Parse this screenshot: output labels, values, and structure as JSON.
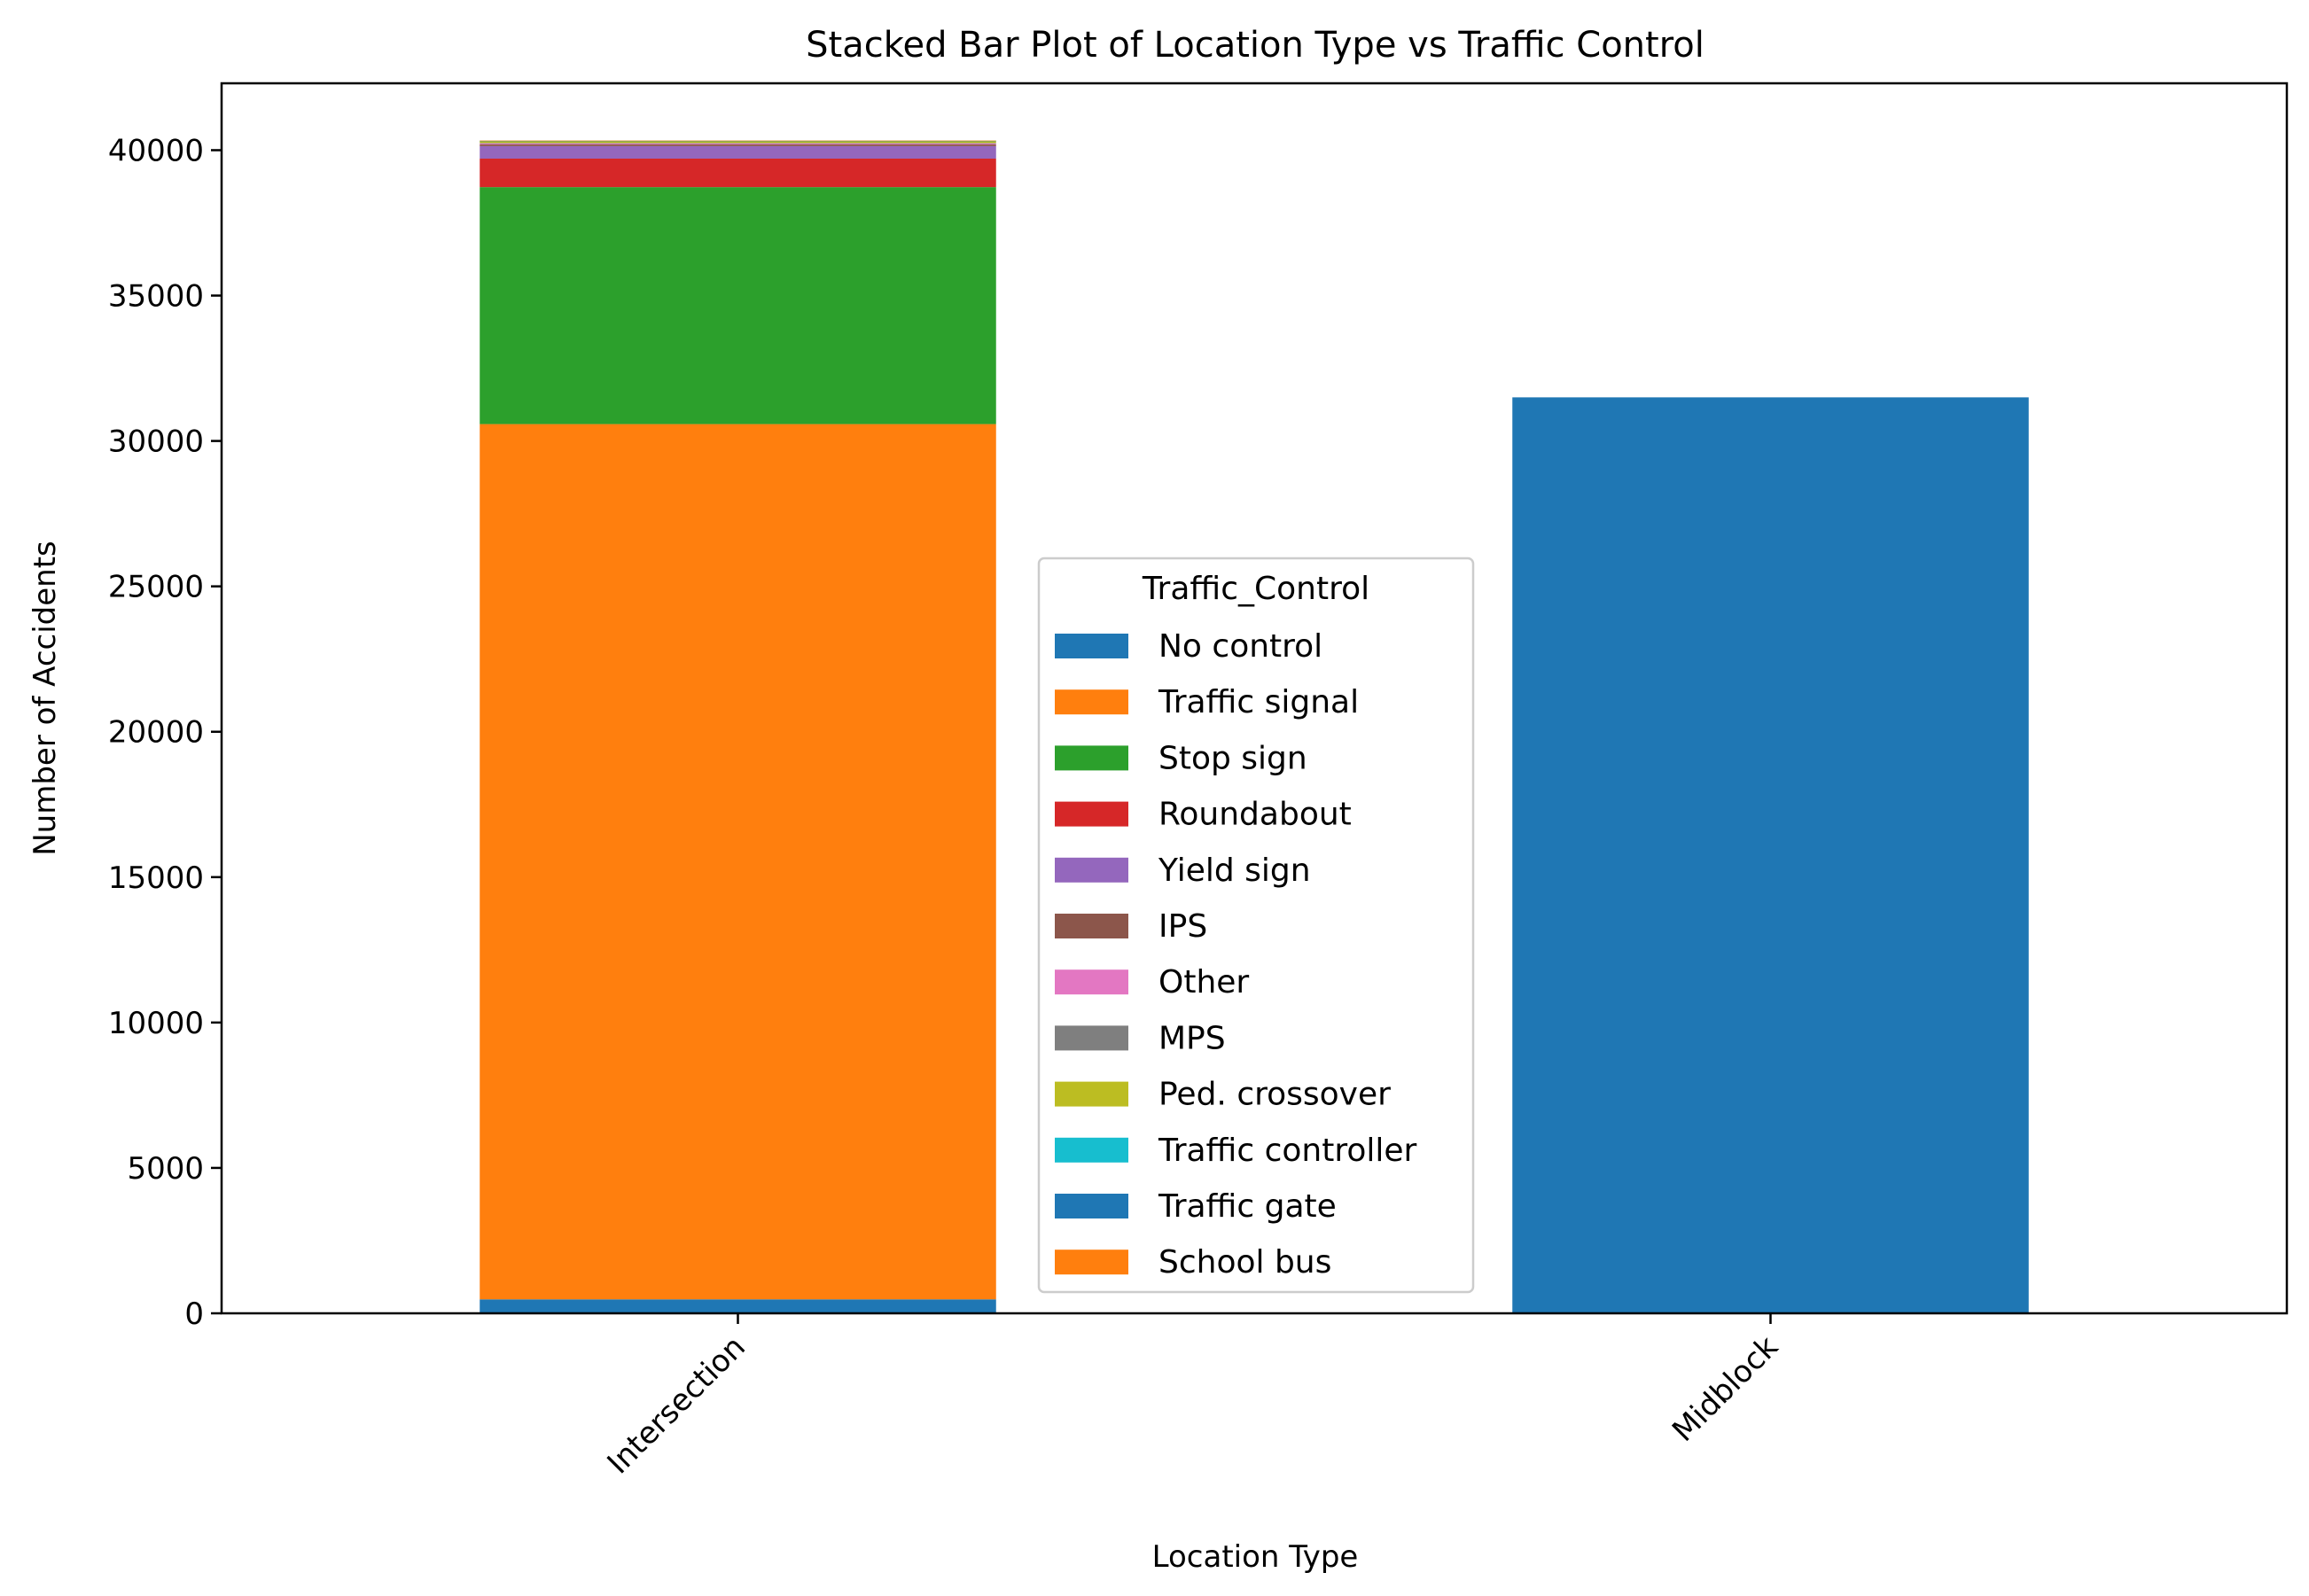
{
  "chart_data": {
    "type": "bar",
    "stacked": true,
    "title": "Stacked Bar Plot of Location Type vs Traffic Control",
    "xlabel": "Location Type",
    "ylabel": "Number of Accidents",
    "categories": [
      "Intersection",
      "Midblock"
    ],
    "ylim": [
      0,
      42300
    ],
    "yticks": [
      0,
      5000,
      10000,
      15000,
      20000,
      25000,
      30000,
      35000,
      40000
    ],
    "grid": false,
    "legend": {
      "title": "Traffic_Control",
      "placement": "center"
    },
    "series": [
      {
        "name": "No control",
        "color": "#1f77b4",
        "values": [
          480,
          31500
        ]
      },
      {
        "name": "Traffic signal",
        "color": "#ff7f0e",
        "values": [
          30100,
          0
        ]
      },
      {
        "name": "Stop sign",
        "color": "#2ca02c",
        "values": [
          8150,
          0
        ]
      },
      {
        "name": "Roundabout",
        "color": "#d62728",
        "values": [
          980,
          0
        ]
      },
      {
        "name": "Yield sign",
        "color": "#9467bd",
        "values": [
          430,
          0
        ]
      },
      {
        "name": "IPS",
        "color": "#8c564b",
        "values": [
          60,
          0
        ]
      },
      {
        "name": "Other",
        "color": "#e377c2",
        "values": [
          30,
          0
        ]
      },
      {
        "name": "MPS",
        "color": "#7f7f7f",
        "values": [
          20,
          0
        ]
      },
      {
        "name": "Ped. crossover",
        "color": "#bcbd22",
        "values": [
          60,
          0
        ]
      },
      {
        "name": "Traffic controller",
        "color": "#17becf",
        "values": [
          10,
          0
        ]
      },
      {
        "name": "Traffic gate",
        "color": "#1f77b4",
        "values": [
          5,
          0
        ]
      },
      {
        "name": "School bus",
        "color": "#ff7f0e",
        "values": [
          5,
          0
        ]
      }
    ]
  }
}
